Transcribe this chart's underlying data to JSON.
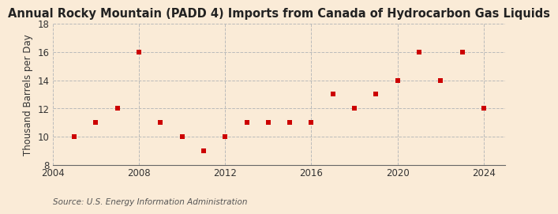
{
  "title": "Annual Rocky Mountain (PADD 4) Imports from Canada of Hydrocarbon Gas Liquids",
  "ylabel": "Thousand Barrels per Day",
  "source": "Source: U.S. Energy Information Administration",
  "background_color": "#faebd7",
  "years": [
    2005,
    2006,
    2007,
    2008,
    2009,
    2010,
    2011,
    2012,
    2013,
    2014,
    2015,
    2016,
    2017,
    2018,
    2019,
    2020,
    2021,
    2022,
    2023,
    2024
  ],
  "values": [
    10,
    11,
    12,
    16,
    11,
    10,
    9,
    10,
    11,
    11,
    11,
    11,
    13,
    12,
    13,
    14,
    16,
    14,
    16,
    12
  ],
  "marker_color": "#cc0000",
  "marker": "s",
  "marker_size": 4,
  "xlim": [
    2004,
    2025
  ],
  "ylim": [
    8,
    18
  ],
  "yticks": [
    8,
    10,
    12,
    14,
    16,
    18
  ],
  "xticks": [
    2004,
    2008,
    2012,
    2016,
    2020,
    2024
  ],
  "grid_color": "#bbbbbb",
  "grid_linestyle": "--",
  "title_fontsize": 10.5,
  "label_fontsize": 8.5,
  "tick_fontsize": 8.5,
  "source_fontsize": 7.5
}
